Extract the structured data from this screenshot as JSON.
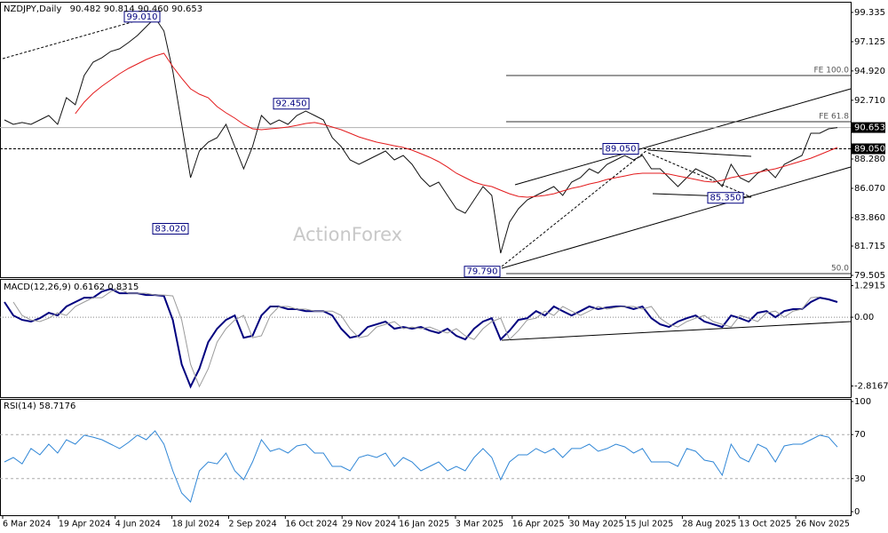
{
  "chart_data": [
    {
      "type": "line",
      "title": "NZDJPY,Daily",
      "ohlc": [
        90.482,
        90.814,
        {
          "value": 90.46,
          "label": "90.460"
        },
        90.653
      ],
      "watermark": "ActionForex",
      "ylim": [
        79.37,
        100.07
      ],
      "yticks": [
        99.335,
        97.125,
        {
          "value": 94.92,
          "label": "94.920"
        },
        {
          "value": 92.71,
          "label": "92.710"
        },
        {
          "value": 88.28,
          "label": "88.280"
        },
        {
          "value": 86.07,
          "label": "86.070"
        },
        {
          "value": 83.86,
          "label": "83.860"
        },
        81.715,
        79.505
      ],
      "price_line": 90.653,
      "hline": {
        "value": 89.05,
        "label": "89.050"
      },
      "levels": [
        {
          "value": 94.58,
          "label": "FE 100.0"
        },
        {
          "value": 91.09,
          "label": "FE 61.8"
        },
        {
          "value": 79.64,
          "label": "50.0"
        }
      ],
      "annotations": [
        {
          "value": 99.01,
          "label": "99.010"
        },
        {
          "value": 83.02,
          "label": "83.020"
        },
        {
          "value": 92.45,
          "label": "92.450"
        },
        {
          "value": 79.79,
          "label": "79.790"
        },
        {
          "value": 89.05,
          "label": "89.050"
        },
        {
          "value": 85.35,
          "label": "85.350"
        }
      ],
      "series": [
        {
          "color": "#111111",
          "values": [
            91.23,
            90.89,
            91.03,
            90.89,
            91.23,
            91.56,
            90.89,
            92.9,
            92.37,
            94.58,
            95.58,
            95.92,
            96.39,
            96.59,
            97.06,
            97.59,
            98.26,
            98.93,
            97.93,
            94.91,
            90.89,
            86.87,
            88.88,
            89.55,
            89.89,
            90.89,
            89.22,
            87.54,
            89.22,
            91.56,
            90.89,
            91.23,
            90.89,
            91.56,
            91.9,
            91.56,
            91.23,
            89.89,
            89.22,
            88.21,
            87.88,
            88.21,
            88.55,
            88.88,
            88.21,
            88.55,
            87.88,
            86.87,
            86.2,
            86.54,
            85.53,
            84.53,
            84.19,
            85.2,
            86.2,
            85.53,
            81.18,
            83.52,
            84.53,
            85.2,
            85.53,
            85.87,
            86.2,
            85.53,
            86.54,
            86.87,
            87.54,
            87.21,
            87.88,
            88.21,
            88.55,
            88.21,
            88.55,
            87.54,
            87.54,
            86.87,
            86.2,
            86.87,
            87.54,
            87.21,
            86.87,
            86.2,
            87.88,
            86.87,
            86.54,
            87.21,
            87.54,
            86.87,
            87.88,
            88.21,
            88.55,
            90.22,
            90.22,
            90.56,
            90.65
          ]
        },
        {
          "color": "#e31a1c",
          "values": [
            null,
            null,
            null,
            null,
            null,
            null,
            null,
            null,
            91.7,
            92.57,
            93.24,
            93.77,
            94.24,
            94.71,
            95.11,
            95.45,
            95.78,
            96.05,
            96.25,
            95.25,
            94.37,
            93.57,
            93.17,
            92.9,
            92.23,
            91.76,
            91.36,
            90.89,
            90.56,
            90.49,
            90.56,
            90.62,
            90.69,
            90.82,
            90.96,
            91.03,
            90.89,
            90.69,
            90.49,
            90.22,
            89.95,
            89.75,
            89.55,
            89.42,
            89.28,
            89.15,
            88.95,
            88.68,
            88.41,
            88.08,
            87.67,
            87.21,
            86.87,
            86.54,
            86.33,
            86.2,
            85.93,
            85.66,
            85.46,
            85.4,
            85.46,
            85.53,
            85.66,
            85.87,
            86.07,
            86.2,
            86.4,
            86.54,
            86.74,
            86.87,
            87.0,
            87.14,
            87.21,
            87.21,
            87.21,
            87.14,
            87.0,
            86.87,
            86.74,
            86.6,
            86.54,
            86.67,
            86.87,
            87.0,
            87.14,
            87.27,
            87.41,
            87.54,
            87.74,
            87.94,
            88.14,
            88.34,
            88.61,
            88.88,
            89.15
          ]
        }
      ]
    },
    {
      "type": "line",
      "title": "MACD(12,26,9)",
      "readings": [
        0.6162,
        0.8315
      ],
      "ylim": [
        -3.27,
        1.53
      ],
      "yticks": [
        1.2915,
        {
          "value": 0,
          "label": "0.00"
        },
        -2.8167
      ],
      "series": [
        {
          "color": "#00007f",
          "values": [
            0.62,
            0.07,
            -0.11,
            -0.18,
            -0.04,
            0.18,
            0.07,
            0.44,
            0.62,
            0.8,
            0.8,
            1.05,
            1.16,
            0.98,
            0.98,
            0.98,
            0.91,
            0.91,
            0.87,
            -0.11,
            -1.93,
            -2.84,
            -2.11,
            -1.02,
            -0.47,
            -0.11,
            0.07,
            -0.84,
            -0.76,
            0.07,
            0.44,
            0.44,
            0.33,
            0.33,
            0.25,
            0.25,
            0.25,
            0.07,
            -0.47,
            -0.84,
            -0.76,
            -0.4,
            -0.29,
            -0.18,
            -0.47,
            -0.4,
            -0.47,
            -0.4,
            -0.55,
            -0.65,
            -0.47,
            -0.76,
            -0.91,
            -0.47,
            -0.18,
            -0.04,
            -0.91,
            -0.55,
            -0.11,
            -0.04,
            0.25,
            0.07,
            0.44,
            0.25,
            0.07,
            0.25,
            0.44,
            0.33,
            0.4,
            0.44,
            0.44,
            0.33,
            0.44,
            -0.04,
            -0.29,
            -0.4,
            -0.18,
            -0.04,
            0.07,
            -0.18,
            -0.29,
            -0.4,
            0.07,
            -0.04,
            -0.18,
            0.18,
            0.25,
            0,
            0.25,
            0.33,
            0.33,
            0.62,
            0.8,
            0.73,
            0.62
          ]
        },
        {
          "color": "#9a9a9a",
          "values": [
            null,
            0.62,
            0.07,
            -0.11,
            -0.18,
            -0.04,
            0.18,
            0.07,
            0.44,
            0.62,
            0.8,
            0.8,
            1.05,
            1.16,
            0.98,
            0.98,
            0.98,
            0.91,
            0.91,
            0.87,
            -0.11,
            -1.93,
            -2.84,
            -2.11,
            -1.02,
            -0.47,
            -0.11,
            0.07,
            -0.84,
            -0.76,
            0.07,
            0.44,
            0.44,
            0.33,
            0.33,
            0.25,
            0.25,
            0.25,
            0.07,
            -0.47,
            -0.84,
            -0.76,
            -0.4,
            -0.29,
            -0.18,
            -0.47,
            -0.4,
            -0.47,
            -0.4,
            -0.55,
            -0.65,
            -0.47,
            -0.76,
            -0.91,
            -0.47,
            -0.18,
            -0.04,
            -0.91,
            -0.55,
            -0.11,
            -0.04,
            0.25,
            0.07,
            0.44,
            0.25,
            0.07,
            0.25,
            0.44,
            0.33,
            0.4,
            0.44,
            0.44,
            0.33,
            0.44,
            -0.04,
            -0.29,
            -0.4,
            -0.18,
            -0.04,
            0.07,
            -0.18,
            -0.29,
            -0.4,
            0.07,
            -0.04,
            -0.18,
            0.18,
            0.25,
            0,
            0.25,
            0.33,
            0.8,
            0.83
          ]
        }
      ]
    },
    {
      "type": "line",
      "title": "RSI(14)",
      "readings": [
        58.7176
      ],
      "ylim": [
        0,
        100
      ],
      "yticks": [
        100,
        70,
        30,
        0
      ],
      "grid_levels": [
        70,
        30
      ],
      "xlim": [
        -0.5,
        95.5
      ],
      "xticks": [
        {
          "value": -0.2,
          "label": "6 Mar 2024"
        },
        {
          "value": 6.1,
          "label": "19 Apr 2024"
        },
        {
          "value": 12.5,
          "label": "4 Jun 2024"
        },
        {
          "value": 18.9,
          "label": "18 Jul 2024"
        },
        {
          "value": 25.3,
          "label": "2 Sep 2024"
        },
        {
          "value": 31.7,
          "label": "16 Oct 2024"
        },
        {
          "value": 38.1,
          "label": "29 Nov 2024"
        },
        {
          "value": 44.5,
          "label": "16 Jan 2025"
        },
        {
          "value": 50.9,
          "label": "3 Mar 2025"
        },
        {
          "value": 57.3,
          "label": "16 Apr 2025"
        },
        {
          "value": 63.7,
          "label": "30 May 2025"
        },
        {
          "value": 70.1,
          "label": "15 Jul 2025"
        },
        {
          "value": 76.5,
          "label": "28 Aug 2025"
        },
        {
          "value": 82.9,
          "label": "13 Oct 2025"
        },
        {
          "value": 89.3,
          "label": "26 Nov 2025"
        }
      ],
      "series": [
        {
          "color": "#2f86d6",
          "values": [
            45.2,
            49.2,
            43.5,
            57.3,
            51.6,
            61.3,
            53.2,
            65.3,
            61.3,
            69.4,
            67.7,
            65.3,
            61.3,
            57.3,
            62.9,
            69.4,
            65.3,
            73.4,
            61.3,
            37.1,
            16.9,
            8.9,
            37.1,
            45.2,
            43.5,
            53.2,
            37.1,
            29.0,
            45.2,
            65.3,
            54.8,
            57.3,
            53.2,
            59.7,
            61.3,
            53.2,
            53.2,
            41.1,
            41.1,
            37.1,
            49.2,
            51.6,
            49.2,
            53.2,
            41.1,
            49.2,
            45.2,
            37.1,
            41.1,
            45.2,
            37.1,
            41.1,
            37.1,
            49.2,
            57.3,
            49.2,
            29.0,
            45.2,
            51.6,
            51.6,
            57.3,
            53.2,
            57.3,
            49.2,
            57.3,
            57.3,
            61.3,
            54.8,
            57.3,
            61.3,
            58.9,
            53.2,
            57.3,
            45.2,
            45.2,
            45.2,
            41.1,
            57.3,
            54.8,
            46.8,
            45.2,
            33.1,
            61.3,
            49.2,
            45.2,
            61.3,
            57.3,
            45.2,
            59.7,
            61.3,
            61.3,
            65.3,
            69.4,
            67.7,
            58.72
          ]
        }
      ]
    }
  ]
}
